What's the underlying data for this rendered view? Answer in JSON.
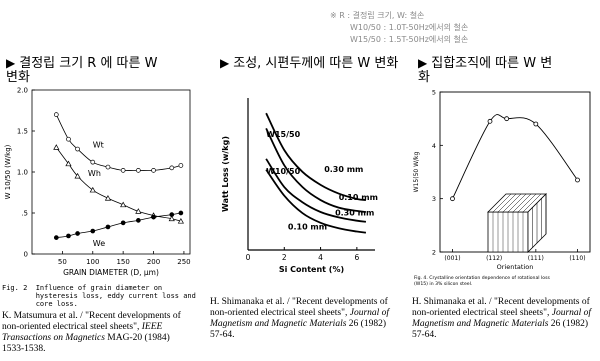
{
  "note": {
    "line1": "※ R : 결정립 크기, W: 철손",
    "line2": "W10/50 : 1.0T-50Hz에서의 철손",
    "line3": "W15/50 : 1.5T-50Hz에서의 철손"
  },
  "sections": [
    {
      "title_line1": "결정립 크기 R 에 따른 W",
      "title_line2": "변화"
    },
    {
      "title_line1": "조성, 시편두께에 따른 W 변화",
      "title_line2": ""
    },
    {
      "title_line1": "집합조직에 따른 W 변",
      "title_line2": "화"
    }
  ],
  "citations": [
    {
      "authors": "K. Matsumura et al. / \"Recent developments of",
      "line2": "non-oriented electrical steel sheets\",",
      "journal": "IEEE",
      "line3": "Transactions on Magnetics",
      "vol": "MAG-20 (1984)",
      "pages": "1533-1538."
    },
    {
      "authors": "H. Shimanaka et al. / \"Recent developments of",
      "line2": "non-oriented electrical steel sheets\",",
      "journal": "Journal of",
      "line3": "Magnetism and Magnetic Materials",
      "vol": "26 (1982)",
      "pages": "57-64."
    },
    {
      "authors": "H. Shimanaka et al. / \"Recent developments of",
      "line2": "non-oriented electrical steel sheets\",",
      "journal": "Journal of",
      "line3": "Magnetism and Magnetic Materials",
      "vol": "26 (1982)",
      "pages": "57-64."
    }
  ],
  "chart_data": [
    {
      "type": "line",
      "ylabel": "W 10/50 (W/kg)",
      "xlabel": "GRAIN DIAMETER (D, μm)",
      "xlim": [
        0,
        260
      ],
      "ylim": [
        0,
        2.0
      ],
      "xticks": [
        50,
        100,
        150,
        200,
        250
      ],
      "yticks": [
        0,
        0.5,
        1.0,
        1.5,
        2.0
      ],
      "ytick_labels": [
        "0",
        ".5",
        "1.0",
        "1.5",
        "2.0"
      ],
      "series": [
        {
          "name": "Wt",
          "marker": "circle-open",
          "x": [
            40,
            60,
            75,
            100,
            125,
            150,
            175,
            200,
            230,
            245
          ],
          "y": [
            1.7,
            1.4,
            1.28,
            1.12,
            1.06,
            1.02,
            1.02,
            1.02,
            1.05,
            1.08
          ]
        },
        {
          "name": "Wh",
          "marker": "triangle",
          "x": [
            40,
            60,
            75,
            100,
            125,
            150,
            175,
            200,
            230,
            245
          ],
          "y": [
            1.3,
            1.1,
            0.95,
            0.78,
            0.68,
            0.6,
            0.52,
            0.47,
            0.43,
            0.4
          ]
        },
        {
          "name": "We",
          "marker": "circle-filled",
          "x": [
            40,
            60,
            75,
            100,
            125,
            150,
            175,
            200,
            230,
            245
          ],
          "y": [
            0.2,
            0.22,
            0.25,
            0.28,
            0.33,
            0.38,
            0.41,
            0.45,
            0.48,
            0.5
          ]
        }
      ],
      "caption": "Fig. 2  Influence of grain diameter on\n        hysteresis loss, eddy current loss and\n        core loss."
    },
    {
      "type": "line",
      "ylabel": "Watt Loss (w/kg)",
      "xlabel": "Si Content (%)",
      "xlim": [
        0,
        7
      ],
      "ylim": [
        0,
        7
      ],
      "xticks": [
        0,
        2,
        4,
        6
      ],
      "series_labels": [
        "W15/50",
        "W10/50"
      ],
      "series": [
        {
          "name": "W15/50 0.30 mm",
          "x": [
            1,
            2,
            3,
            4,
            5,
            6,
            6.5
          ],
          "y": [
            6.3,
            4.6,
            3.6,
            3.0,
            2.6,
            2.35,
            2.3
          ]
        },
        {
          "name": "W15/50 0.10 mm",
          "x": [
            1,
            2,
            3,
            4,
            5,
            6,
            6.5
          ],
          "y": [
            5.6,
            3.9,
            2.9,
            2.3,
            1.95,
            1.8,
            1.75
          ]
        },
        {
          "name": "W10/50 0.30 mm",
          "x": [
            1,
            2,
            3,
            4,
            5,
            6,
            6.5
          ],
          "y": [
            4.2,
            2.9,
            2.2,
            1.75,
            1.5,
            1.35,
            1.3
          ]
        },
        {
          "name": "W10/50 0.10 mm",
          "x": [
            1,
            2,
            3,
            4,
            5,
            6,
            6.5
          ],
          "y": [
            3.7,
            2.5,
            1.7,
            1.25,
            1.0,
            0.85,
            0.8
          ]
        }
      ],
      "thickness_labels": [
        "0.30 mm",
        "0.10 mm",
        "0.30 mm",
        "0.10 mm"
      ]
    },
    {
      "type": "line",
      "ylabel": "W15(50 W/kg",
      "xlabel": "Orientation",
      "ylim": [
        2,
        5
      ],
      "yticks": [
        2,
        3,
        4,
        5
      ],
      "categories": [
        "(001)",
        "(112)",
        "(111)",
        "(110)"
      ],
      "x": [
        0,
        0.9,
        1.3,
        2.0,
        3.0
      ],
      "values": [
        3.0,
        4.45,
        4.5,
        4.4,
        3.35
      ],
      "caption_line1": "Fig. 4. Crystalline orientation dependence of rotational loss",
      "caption_line2": "(W15) in 3% silicon steel."
    }
  ]
}
